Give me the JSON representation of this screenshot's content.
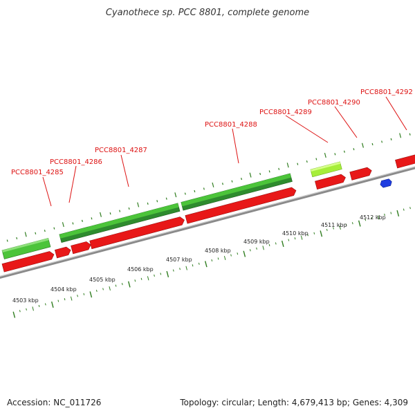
{
  "title": "Cyanothece sp. PCC 8801, complete genome",
  "footer": {
    "accession": "Accession: NC_011726",
    "summary": "Topology: circular; Length: 4,679,413 bp; Genes: 4,309"
  },
  "colors": {
    "forward_gene_green": "#4cc43a",
    "forward_gene_dark_green": "#2e8b2e",
    "forward_gene_light_green": "#a6ee3a",
    "reverse_gene_red": "#e81818",
    "feature_blue": "#1f3de0",
    "backbone_gray": "#8a8a8a",
    "tick_green": "#2f7d1f",
    "label_red": "#dd1111"
  },
  "gene_labels": [
    {
      "text": "PCC8801_4285"
    },
    {
      "text": "PCC8801_4286"
    },
    {
      "text": "PCC8801_4287"
    },
    {
      "text": "PCC8801_4288"
    },
    {
      "text": "PCC8801_4289"
    },
    {
      "text": "PCC8801_4290"
    },
    {
      "text": "PCC8801_4292"
    }
  ],
  "kbp_labels": [
    {
      "text": "4503 kbp"
    },
    {
      "text": "4504 kbp"
    },
    {
      "text": "4505 kbp"
    },
    {
      "text": "4506 kbp"
    },
    {
      "text": "4507 kbp"
    },
    {
      "text": "4508 kbp"
    },
    {
      "text": "4509 kbp"
    },
    {
      "text": "4510 kbp"
    },
    {
      "text": "4511 kbp"
    },
    {
      "text": "4512 kbp"
    }
  ]
}
